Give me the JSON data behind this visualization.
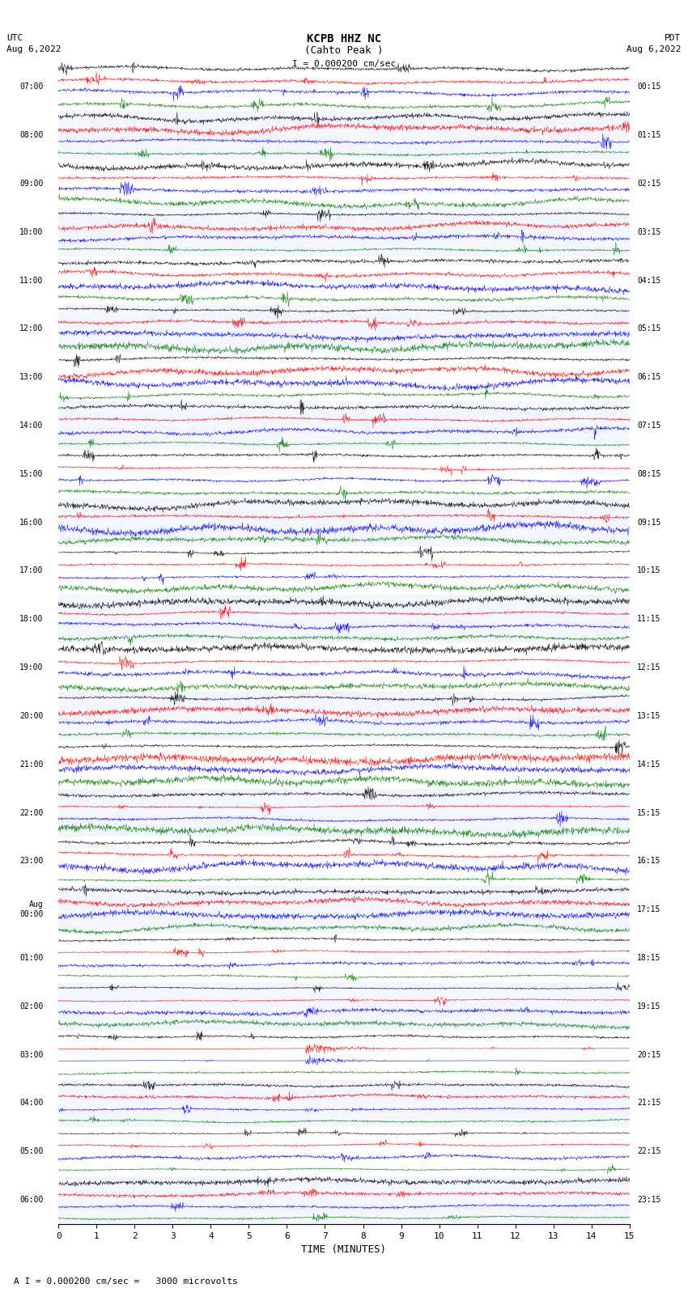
{
  "title_line1": "KCPB HHZ NC",
  "title_line2": "(Cahto Peak )",
  "scale_label": "I = 0.000200 cm/sec",
  "left_header1": "UTC",
  "left_header2": "Aug 6,2022",
  "right_header1": "PDT",
  "right_header2": "Aug 6,2022",
  "xlabel": "TIME (MINUTES)",
  "footer": "A I = 0.000200 cm/sec =   3000 microvolts",
  "time_minutes": 15,
  "left_times_utc": [
    "07:00",
    "08:00",
    "09:00",
    "10:00",
    "11:00",
    "12:00",
    "13:00",
    "14:00",
    "15:00",
    "16:00",
    "17:00",
    "18:00",
    "19:00",
    "20:00",
    "21:00",
    "22:00",
    "23:00",
    "Aug\n00:00",
    "01:00",
    "02:00",
    "03:00",
    "04:00",
    "05:00",
    "06:00"
  ],
  "right_times_pdt": [
    "00:15",
    "01:15",
    "02:15",
    "03:15",
    "04:15",
    "05:15",
    "06:15",
    "07:15",
    "08:15",
    "09:15",
    "10:15",
    "11:15",
    "12:15",
    "13:15",
    "14:15",
    "15:15",
    "16:15",
    "17:15",
    "18:15",
    "19:15",
    "20:15",
    "21:15",
    "22:15",
    "23:15"
  ],
  "num_rows": 24,
  "traces_per_row": 4,
  "colors": [
    "black",
    "red",
    "blue",
    "green"
  ],
  "amplitude_base": 0.18,
  "noise_seed": 42,
  "fig_width": 8.5,
  "fig_height": 16.13,
  "dpi": 100
}
